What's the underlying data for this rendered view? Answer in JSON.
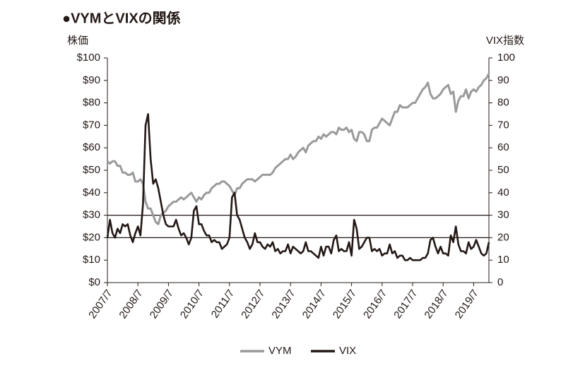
{
  "chart_data": {
    "type": "line",
    "title": "●VYMとVIXの関係",
    "ylabel": "株価",
    "y2label": "VIX指数",
    "x": [
      "2007/7",
      "2007/8",
      "2007/9",
      "2007/10",
      "2007/11",
      "2007/12",
      "2008/1",
      "2008/2",
      "2008/3",
      "2008/4",
      "2008/5",
      "2008/6",
      "2008/7",
      "2008/8",
      "2008/9",
      "2008/10",
      "2008/11",
      "2008/12",
      "2009/1",
      "2009/2",
      "2009/3",
      "2009/4",
      "2009/5",
      "2009/6",
      "2009/7",
      "2009/8",
      "2009/9",
      "2009/10",
      "2009/11",
      "2009/12",
      "2010/1",
      "2010/2",
      "2010/3",
      "2010/4",
      "2010/5",
      "2010/6",
      "2010/7",
      "2010/8",
      "2010/9",
      "2010/10",
      "2010/11",
      "2010/12",
      "2011/1",
      "2011/2",
      "2011/3",
      "2011/4",
      "2011/5",
      "2011/6",
      "2011/7",
      "2011/8",
      "2011/9",
      "2011/10",
      "2011/11",
      "2011/12",
      "2012/1",
      "2012/2",
      "2012/3",
      "2012/4",
      "2012/5",
      "2012/6",
      "2012/7",
      "2012/8",
      "2012/9",
      "2012/10",
      "2012/11",
      "2012/12",
      "2013/1",
      "2013/2",
      "2013/3",
      "2013/4",
      "2013/5",
      "2013/6",
      "2013/7",
      "2013/8",
      "2013/9",
      "2013/10",
      "2013/11",
      "2013/12",
      "2014/1",
      "2014/2",
      "2014/3",
      "2014/4",
      "2014/5",
      "2014/6",
      "2014/7",
      "2014/8",
      "2014/9",
      "2014/10",
      "2014/11",
      "2014/12",
      "2015/1",
      "2015/2",
      "2015/3",
      "2015/4",
      "2015/5",
      "2015/6",
      "2015/7",
      "2015/8",
      "2015/9",
      "2015/10",
      "2015/11",
      "2015/12",
      "2016/1",
      "2016/2",
      "2016/3",
      "2016/4",
      "2016/5",
      "2016/6",
      "2016/7",
      "2016/8",
      "2016/9",
      "2016/10",
      "2016/11",
      "2016/12",
      "2017/1",
      "2017/2",
      "2017/3",
      "2017/4",
      "2017/5",
      "2017/6",
      "2017/7",
      "2017/8",
      "2017/9",
      "2017/10",
      "2017/11",
      "2017/12",
      "2018/1",
      "2018/2",
      "2018/3",
      "2018/4",
      "2018/5",
      "2018/6",
      "2018/7",
      "2018/8",
      "2018/9",
      "2018/10",
      "2018/11",
      "2018/12",
      "2019/1",
      "2019/2",
      "2019/3",
      "2019/4",
      "2019/5",
      "2019/6",
      "2019/7",
      "2019/8",
      "2019/9",
      "2019/10",
      "2019/11",
      "2019/12",
      "2020/1"
    ],
    "series": [
      {
        "name": "VYM",
        "color": "#9a9a9a",
        "values": [
          54,
          53,
          54,
          54,
          52,
          52,
          49,
          49,
          48,
          48,
          49,
          45,
          45,
          46,
          44,
          36,
          33,
          33,
          30,
          27,
          26,
          30,
          31,
          32,
          34,
          35,
          36,
          36,
          37,
          38,
          37,
          38,
          39,
          40,
          38,
          36,
          38,
          37,
          39,
          40,
          40,
          42,
          43,
          44,
          44,
          45,
          45,
          44,
          43,
          41,
          39,
          42,
          42,
          44,
          45,
          46,
          46,
          46,
          45,
          46,
          47,
          48,
          48,
          48,
          48,
          49,
          51,
          52,
          53,
          54,
          55,
          55,
          57,
          55,
          56,
          58,
          59,
          60,
          58,
          61,
          62,
          63,
          63,
          65,
          64,
          66,
          65,
          66,
          67,
          67,
          66,
          69,
          68,
          68,
          69,
          67,
          68,
          64,
          63,
          67,
          67,
          66,
          63,
          63,
          68,
          69,
          69,
          71,
          73,
          72,
          71,
          70,
          73,
          76,
          76,
          79,
          78,
          78,
          78,
          79,
          80,
          80,
          82,
          84,
          86,
          87,
          89,
          84,
          82,
          82,
          83,
          84,
          86,
          87,
          88,
          84,
          85,
          76,
          81,
          83,
          83,
          86,
          82,
          85,
          86,
          85,
          87,
          88,
          90,
          91,
          93
        ]
      },
      {
        "name": "VIX",
        "color": "#231815",
        "axis": "y2",
        "values": [
          20,
          28,
          22,
          20,
          24,
          22,
          26,
          25,
          26,
          21,
          18,
          22,
          25,
          21,
          35,
          70,
          75,
          55,
          44,
          46,
          42,
          36,
          30,
          26,
          25,
          25,
          25,
          28,
          24,
          21,
          22,
          20,
          17,
          20,
          32,
          34,
          26,
          26,
          23,
          21,
          21,
          18,
          19,
          18,
          18,
          15,
          16,
          17,
          20,
          38,
          40,
          30,
          28,
          24,
          20,
          18,
          15,
          17,
          22,
          18,
          18,
          16,
          15,
          17,
          16,
          18,
          14,
          15,
          13,
          14,
          14,
          17,
          13,
          16,
          15,
          14,
          13,
          14,
          18,
          14,
          14,
          13,
          12,
          11,
          16,
          12,
          16,
          16,
          13,
          19,
          21,
          14,
          15,
          14,
          14,
          18,
          12,
          28,
          24,
          15,
          16,
          18,
          20,
          20,
          14,
          15,
          14,
          15,
          12,
          13,
          13,
          17,
          13,
          14,
          11,
          12,
          12,
          10,
          10,
          11,
          10,
          10,
          10,
          10,
          11,
          11,
          13,
          19,
          20,
          16,
          13,
          16,
          13,
          13,
          12,
          21,
          18,
          25,
          17,
          14,
          14,
          13,
          18,
          15,
          16,
          19,
          16,
          13,
          12,
          13,
          18
        ]
      }
    ],
    "xticks": [
      "2007/7",
      "2008/7",
      "2009/7",
      "2010/7",
      "2011/7",
      "2012/7",
      "2013/7",
      "2014/7",
      "2015/7",
      "2016/7",
      "2017/7",
      "2018/7",
      "2019/7"
    ],
    "ylim": [
      0,
      100
    ],
    "yticks": [
      {
        "value": 0,
        "label": "$0"
      },
      {
        "value": 10,
        "label": "$10"
      },
      {
        "value": 20,
        "label": "$20"
      },
      {
        "value": 30,
        "label": "$30"
      },
      {
        "value": 40,
        "label": "$40"
      },
      {
        "value": 50,
        "label": "$50"
      },
      {
        "value": 60,
        "label": "$60"
      },
      {
        "value": 70,
        "label": "$70"
      },
      {
        "value": 80,
        "label": "$80"
      },
      {
        "value": 90,
        "label": "$90"
      },
      {
        "value": 100,
        "label": "$100"
      }
    ],
    "y2lim": [
      0,
      100
    ],
    "y2ticks": [
      0,
      10,
      20,
      30,
      40,
      50,
      60,
      70,
      80,
      90,
      100
    ],
    "reference_lines": [
      20,
      30
    ],
    "legend": "bottom"
  }
}
